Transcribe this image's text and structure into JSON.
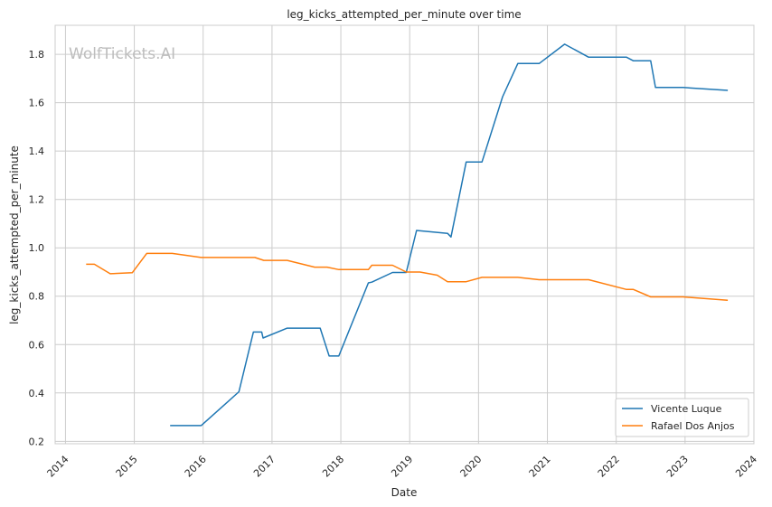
{
  "chart_data": {
    "type": "line",
    "title": "leg_kicks_attempted_per_minute over time",
    "xlabel": "Date",
    "ylabel": "leg_kicks_attempted_per_minute",
    "watermark": "WolfTickets.AI",
    "xlim": [
      2013.85,
      2024.0
    ],
    "ylim": [
      0.19,
      1.92
    ],
    "x_ticks": [
      "2014",
      "2015",
      "2016",
      "2017",
      "2018",
      "2019",
      "2020",
      "2021",
      "2022",
      "2023",
      "2024"
    ],
    "y_ticks": [
      "0.2",
      "0.4",
      "0.6",
      "0.8",
      "1.0",
      "1.2",
      "1.4",
      "1.6",
      "1.8"
    ],
    "grid": true,
    "legend_position": "lower-right",
    "series": [
      {
        "name": "Vicente Luque",
        "color": "#1f77b4",
        "points": [
          [
            2015.52,
            0.265
          ],
          [
            2015.97,
            0.265
          ],
          [
            2016.52,
            0.405
          ],
          [
            2016.73,
            0.652
          ],
          [
            2016.85,
            0.652
          ],
          [
            2016.87,
            0.627
          ],
          [
            2017.22,
            0.668
          ],
          [
            2017.7,
            0.668
          ],
          [
            2017.83,
            0.553
          ],
          [
            2017.97,
            0.553
          ],
          [
            2018.4,
            0.855
          ],
          [
            2018.45,
            0.858
          ],
          [
            2018.75,
            0.898
          ],
          [
            2018.95,
            0.898
          ],
          [
            2019.1,
            1.072
          ],
          [
            2019.55,
            1.06
          ],
          [
            2019.6,
            1.045
          ],
          [
            2019.82,
            1.355
          ],
          [
            2020.05,
            1.355
          ],
          [
            2020.35,
            1.625
          ],
          [
            2020.57,
            1.762
          ],
          [
            2020.88,
            1.762
          ],
          [
            2021.25,
            1.842
          ],
          [
            2021.6,
            1.788
          ],
          [
            2022.15,
            1.788
          ],
          [
            2022.25,
            1.773
          ],
          [
            2022.5,
            1.773
          ],
          [
            2022.57,
            1.663
          ],
          [
            2022.97,
            1.663
          ],
          [
            2023.62,
            1.651
          ]
        ]
      },
      {
        "name": "Rafael Dos Anjos",
        "color": "#ff7f0e",
        "points": [
          [
            2014.3,
            0.932
          ],
          [
            2014.42,
            0.932
          ],
          [
            2014.65,
            0.893
          ],
          [
            2014.97,
            0.897
          ],
          [
            2015.18,
            0.977
          ],
          [
            2015.55,
            0.977
          ],
          [
            2015.97,
            0.96
          ],
          [
            2016.75,
            0.96
          ],
          [
            2016.88,
            0.948
          ],
          [
            2017.22,
            0.948
          ],
          [
            2017.62,
            0.92
          ],
          [
            2017.8,
            0.92
          ],
          [
            2017.97,
            0.91
          ],
          [
            2018.4,
            0.91
          ],
          [
            2018.45,
            0.928
          ],
          [
            2018.75,
            0.928
          ],
          [
            2018.95,
            0.9
          ],
          [
            2019.15,
            0.9
          ],
          [
            2019.4,
            0.887
          ],
          [
            2019.55,
            0.86
          ],
          [
            2019.82,
            0.86
          ],
          [
            2020.05,
            0.878
          ],
          [
            2020.57,
            0.878
          ],
          [
            2020.88,
            0.868
          ],
          [
            2021.6,
            0.868
          ],
          [
            2022.15,
            0.828
          ],
          [
            2022.25,
            0.828
          ],
          [
            2022.5,
            0.797
          ],
          [
            2022.97,
            0.797
          ],
          [
            2023.62,
            0.783
          ]
        ]
      }
    ]
  }
}
